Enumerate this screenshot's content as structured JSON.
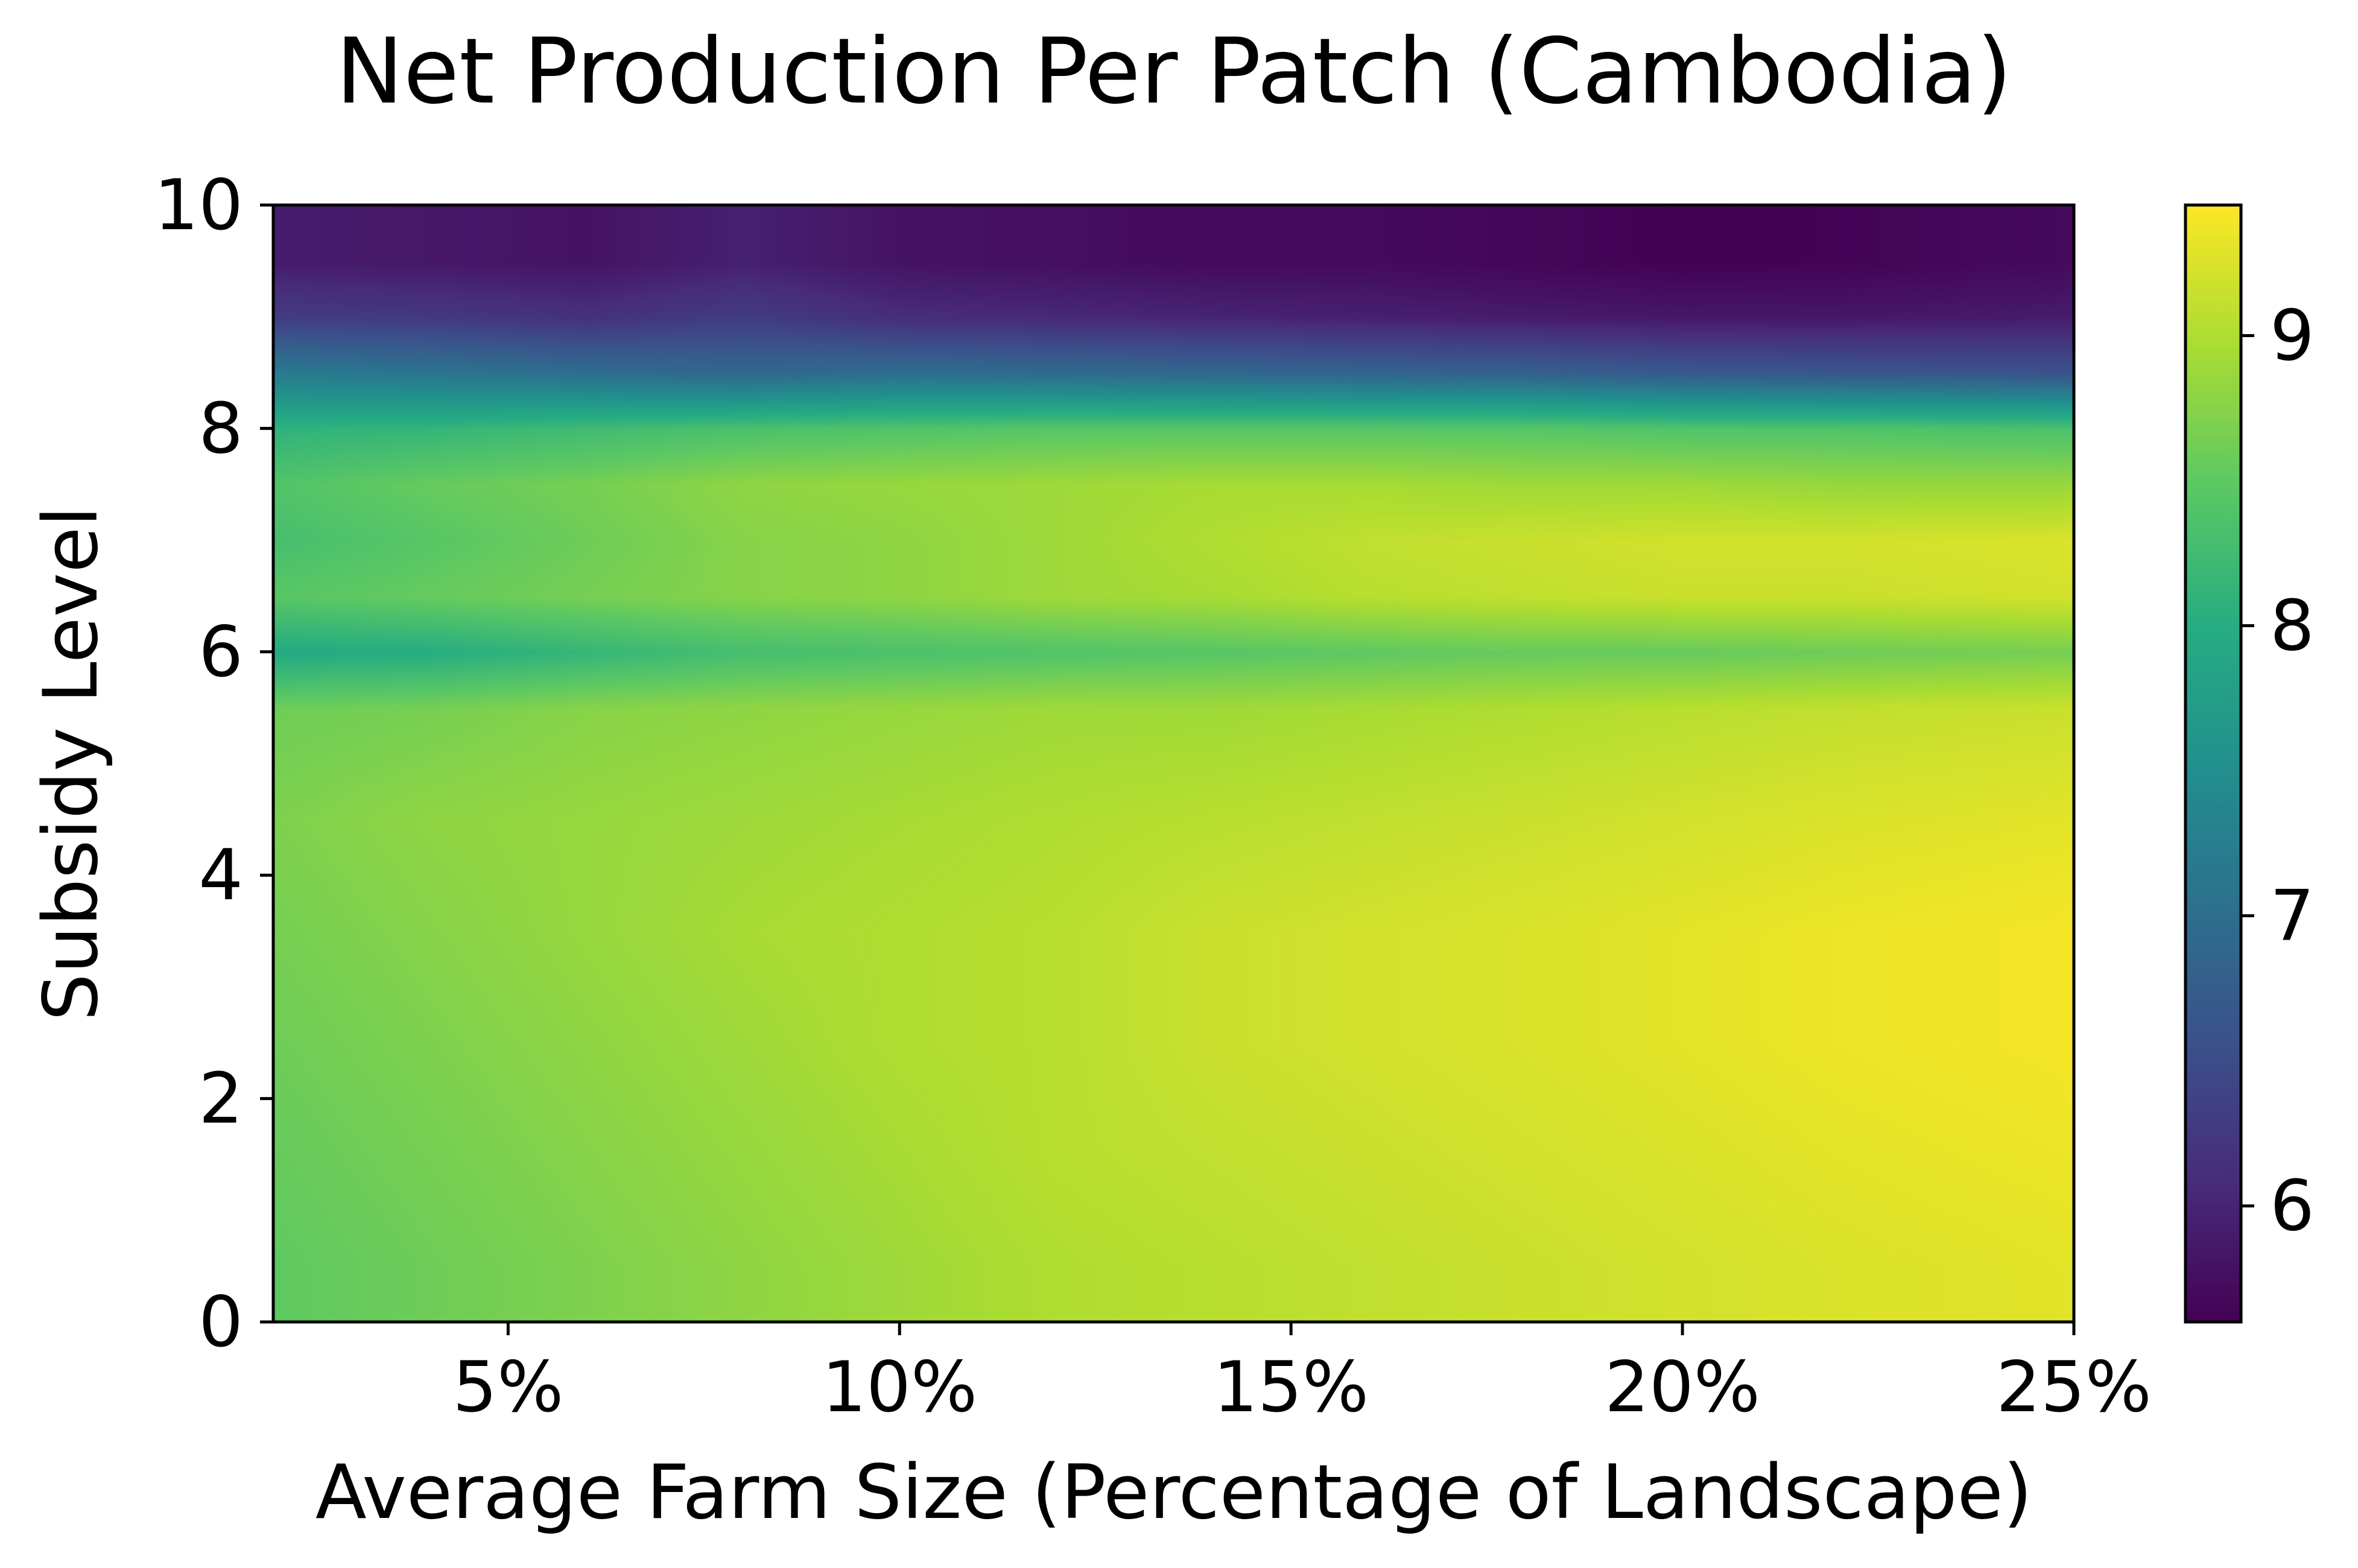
{
  "chart_data": {
    "type": "heatmap",
    "title": "Net Production Per Patch (Cambodia)",
    "xlabel": "Average Farm Size (Percentage of Landscape)",
    "ylabel": "Subsidy Level",
    "xlim": [
      2,
      25
    ],
    "ylim": [
      0,
      10
    ],
    "x_ticks": [
      {
        "value": 5,
        "label": "5%"
      },
      {
        "value": 10,
        "label": "10%"
      },
      {
        "value": 15,
        "label": "15%"
      },
      {
        "value": 20,
        "label": "20%"
      },
      {
        "value": 25,
        "label": "25%"
      }
    ],
    "y_ticks": [
      {
        "value": 0,
        "label": "0"
      },
      {
        "value": 2,
        "label": "2"
      },
      {
        "value": 4,
        "label": "4"
      },
      {
        "value": 6,
        "label": "6"
      },
      {
        "value": 8,
        "label": "8"
      },
      {
        "value": 10,
        "label": "10"
      }
    ],
    "colorbar": {
      "colormap": "viridis",
      "vmin": 5.6,
      "vmax": 9.45,
      "ticks": [
        {
          "value": 6,
          "label": "6"
        },
        {
          "value": 7,
          "label": "7"
        },
        {
          "value": 8,
          "label": "8"
        },
        {
          "value": 9,
          "label": "9"
        }
      ]
    },
    "grid": false,
    "x": [
      2,
      4,
      6,
      8,
      10,
      12,
      14,
      16,
      18,
      20,
      22,
      25
    ],
    "y": [
      0.5,
      1.5,
      2.5,
      3.5,
      4.5,
      5.5,
      6.0,
      6.5,
      7.0,
      7.5,
      8.0,
      8.5,
      9.0,
      9.5
    ],
    "values": [
      [
        8.5,
        8.6,
        8.7,
        8.8,
        8.9,
        9.0,
        9.05,
        9.1,
        9.15,
        9.2,
        9.25,
        9.3
      ],
      [
        8.55,
        8.65,
        8.75,
        8.85,
        8.95,
        9.05,
        9.1,
        9.15,
        9.2,
        9.25,
        9.3,
        9.35
      ],
      [
        8.6,
        8.7,
        8.8,
        8.9,
        9.0,
        9.05,
        9.15,
        9.2,
        9.25,
        9.3,
        9.35,
        9.4
      ],
      [
        8.65,
        8.75,
        8.85,
        8.95,
        9.0,
        9.05,
        9.15,
        9.2,
        9.25,
        9.3,
        9.35,
        9.4
      ],
      [
        8.7,
        8.8,
        8.85,
        8.9,
        8.95,
        9.0,
        9.05,
        9.1,
        9.15,
        9.2,
        9.25,
        9.3
      ],
      [
        8.6,
        8.65,
        8.75,
        8.8,
        8.85,
        8.9,
        8.9,
        8.95,
        9.0,
        9.05,
        9.1,
        9.15
      ],
      [
        7.95,
        8.0,
        8.15,
        8.3,
        8.35,
        8.4,
        8.45,
        8.5,
        8.55,
        8.55,
        8.6,
        8.65
      ],
      [
        8.45,
        8.55,
        8.65,
        8.75,
        8.8,
        8.9,
        8.95,
        9.05,
        9.1,
        9.15,
        9.15,
        9.2
      ],
      [
        8.3,
        8.45,
        8.6,
        8.75,
        8.8,
        8.9,
        9.0,
        9.1,
        9.15,
        9.2,
        9.2,
        9.25
      ],
      [
        8.4,
        8.55,
        8.65,
        8.8,
        8.85,
        8.9,
        8.95,
        8.95,
        8.9,
        8.9,
        8.85,
        8.85
      ],
      [
        8.1,
        8.15,
        8.25,
        8.35,
        8.4,
        8.45,
        8.45,
        8.45,
        8.45,
        8.4,
        8.4,
        8.35
      ],
      [
        7.2,
        7.1,
        7.0,
        6.9,
        7.0,
        6.95,
        6.9,
        6.85,
        6.8,
        6.7,
        6.65,
        6.6
      ],
      [
        6.3,
        6.25,
        6.15,
        6.3,
        6.1,
        6.05,
        6.0,
        5.95,
        5.9,
        5.85,
        5.85,
        5.9
      ],
      [
        5.9,
        5.85,
        5.8,
        5.95,
        5.8,
        5.75,
        5.7,
        5.7,
        5.65,
        5.6,
        5.62,
        5.7
      ]
    ]
  }
}
